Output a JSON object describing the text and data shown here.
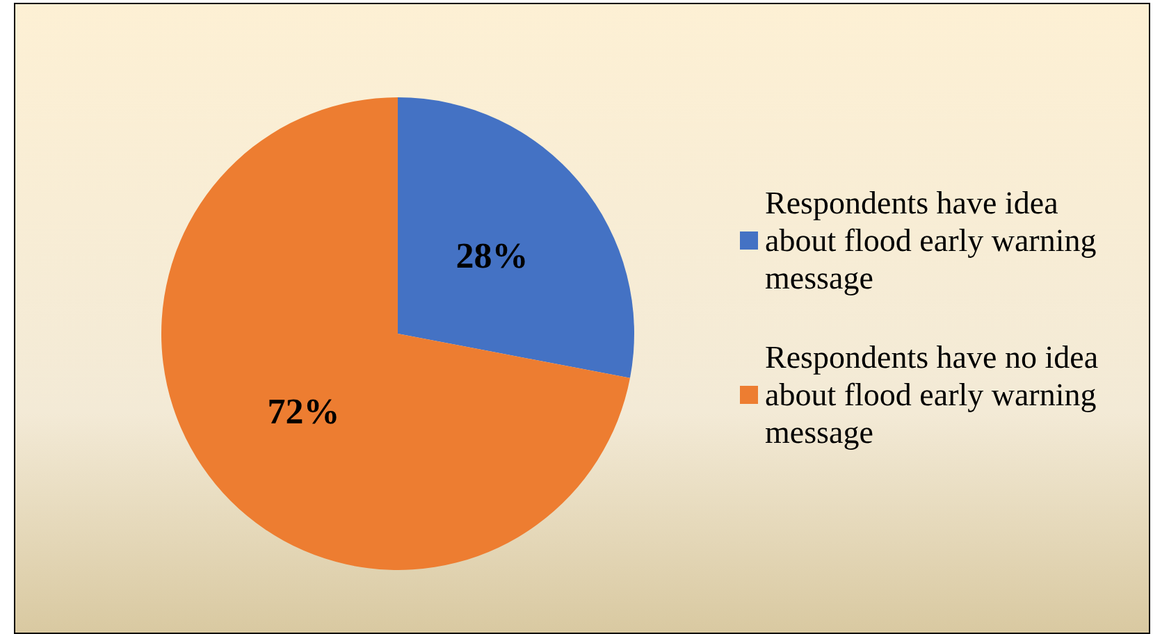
{
  "chart_data": {
    "type": "pie",
    "categories": [
      "Respondents have idea about flood early warning message",
      "Respondents have no idea about flood early warning message"
    ],
    "values": [
      28,
      72
    ],
    "colors": [
      "#4472c4",
      "#ed7d31"
    ],
    "value_labels": [
      "28%",
      "72%"
    ],
    "legend": "right"
  }
}
